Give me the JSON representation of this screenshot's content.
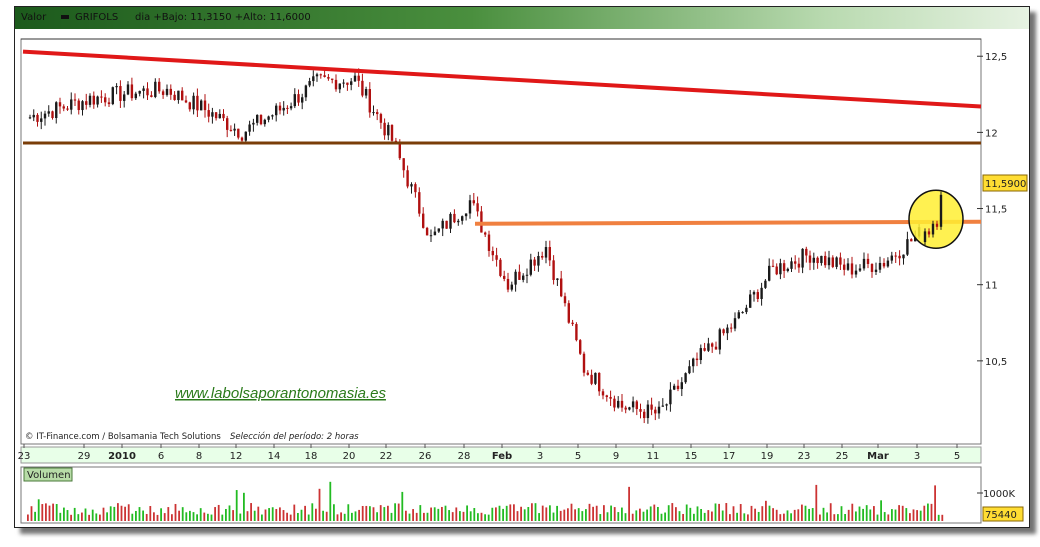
{
  "header": {
    "valor_label": "Valor",
    "symbol": "GRIFOLS",
    "stats": "dia +Bajo: 11,3150 +Alto: 11,6000"
  },
  "watermark": "www.labolsaporantonomasia.es",
  "credits": "© IT-Finance.com / Bolsamania Tech Solutions",
  "period": "Selección del período: 2 horas",
  "volume_label": "Volumen",
  "volume_ticks": [
    "1000K"
  ],
  "volume_last": "75440",
  "last_price_label": "11,5900",
  "colors": {
    "up": "#1a1a1a",
    "down": "#b01010",
    "resistance_red": "#e01818",
    "support_brown": "#7a3d08",
    "neckline_orange": "#f08040",
    "highlight_circle": "#ffee33",
    "volume_green": "#22bb22",
    "volume_red": "#cc3333",
    "header_dark": "#1c5a1c",
    "header_light": "#e6f2e2"
  },
  "chart_data": [
    {
      "type": "candlestick",
      "title": "GRIFOLS",
      "x_tick_labels": [
        "23",
        "29",
        "2010",
        "6",
        "8",
        "12",
        "14",
        "18",
        "20",
        "22",
        "26",
        "28",
        "Feb",
        "3",
        "5",
        "9",
        "11",
        "15",
        "17",
        "19",
        "23",
        "25",
        "Mar",
        "3",
        "5"
      ],
      "y_tick_labels": [
        "12,5",
        "12",
        "11,5",
        "11",
        "10,5"
      ],
      "ylim": [
        10.0,
        12.6
      ],
      "grid": false,
      "price_path": [
        {
          "date": "23",
          "close": 12.1
        },
        {
          "date": "29",
          "close": 12.22
        },
        {
          "date": "2010",
          "close": 12.26
        },
        {
          "date": "6",
          "close": 12.28
        },
        {
          "date": "8",
          "close": 12.15
        },
        {
          "date": "12",
          "close": 12.0
        },
        {
          "date": "14",
          "close": 12.15
        },
        {
          "date": "18",
          "close": 12.33
        },
        {
          "date": "20",
          "close": 12.35
        },
        {
          "date": "22",
          "close": 11.95
        },
        {
          "date": "26",
          "close": 11.3
        },
        {
          "date": "28",
          "close": 11.55
        },
        {
          "date": "Feb",
          "close": 11.0
        },
        {
          "date": "3",
          "close": 11.25
        },
        {
          "date": "5",
          "close": 10.45
        },
        {
          "date": "9",
          "close": 10.2
        },
        {
          "date": "11",
          "close": 10.15
        },
        {
          "date": "15",
          "close": 10.5
        },
        {
          "date": "17",
          "close": 10.75
        },
        {
          "date": "19",
          "close": 11.1
        },
        {
          "date": "23",
          "close": 11.2
        },
        {
          "date": "25",
          "close": 11.1
        },
        {
          "date": "Mar",
          "close": 11.15
        },
        {
          "date": "3",
          "close": 11.35
        },
        {
          "date": "5",
          "close": 11.59
        }
      ],
      "last_close": 11.59,
      "day_low": 11.315,
      "day_high": 11.6,
      "annotations": [
        {
          "kind": "resistance_line",
          "color": "red",
          "from": {
            "date": "23",
            "value": 12.53
          },
          "to": {
            "date": "5",
            "value": 12.17
          }
        },
        {
          "kind": "horizontal_support",
          "color": "brown",
          "value": 11.93
        },
        {
          "kind": "neckline",
          "color": "orange",
          "value": 11.4,
          "from_date": "28"
        },
        {
          "kind": "highlight_circle",
          "color": "yellow",
          "at_date": "5",
          "value": 11.43
        }
      ]
    },
    {
      "type": "bar",
      "title": "Volumen",
      "y_tick_labels": [
        "1000K"
      ],
      "last_value": 75440
    }
  ]
}
